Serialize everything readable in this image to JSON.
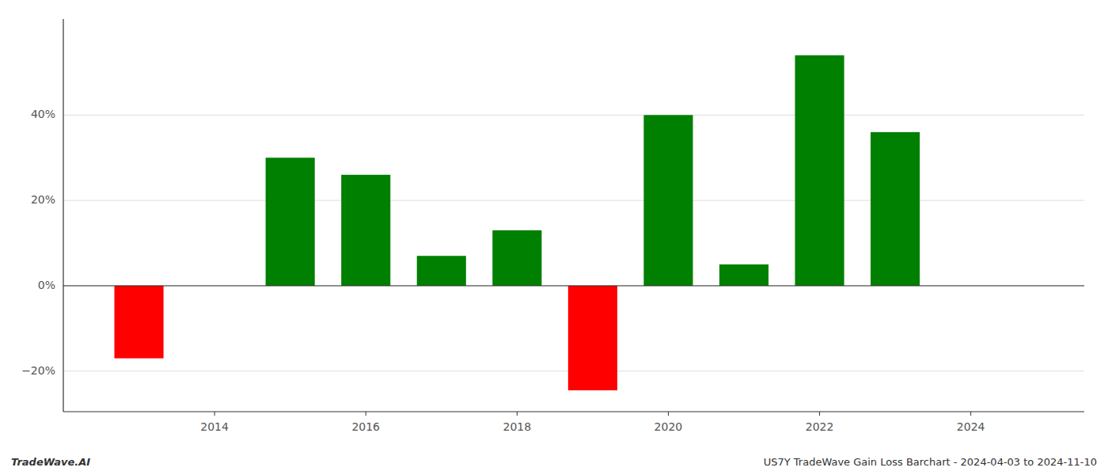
{
  "chart_data": {
    "type": "bar",
    "x": [
      2013,
      2015,
      2016,
      2017,
      2018,
      2019,
      2020,
      2021,
      2022,
      2023
    ],
    "values": [
      -0.17,
      0.3,
      0.26,
      0.07,
      0.13,
      -0.245,
      0.4,
      0.05,
      0.54,
      0.36
    ],
    "colors": [
      "#ff0000",
      "#008000",
      "#008000",
      "#008000",
      "#008000",
      "#ff0000",
      "#008000",
      "#008000",
      "#008000",
      "#008000"
    ],
    "xlim": [
      2012.0,
      2025.5
    ],
    "ylim": [
      -0.295,
      0.625
    ],
    "xticks": [
      2014,
      2016,
      2018,
      2020,
      2022,
      2024
    ],
    "yticks": [
      {
        "value": -0.2,
        "label": "−20%"
      },
      {
        "value": 0.0,
        "label": "0%"
      },
      {
        "value": 0.2,
        "label": "20%"
      },
      {
        "value": 0.4,
        "label": "40%"
      }
    ],
    "grid": true,
    "annotations": [
      "TradeWave.AI",
      "US7Y TradeWave Gain Loss Barchart - 2024-04-03 to 2024-11-10"
    ]
  }
}
